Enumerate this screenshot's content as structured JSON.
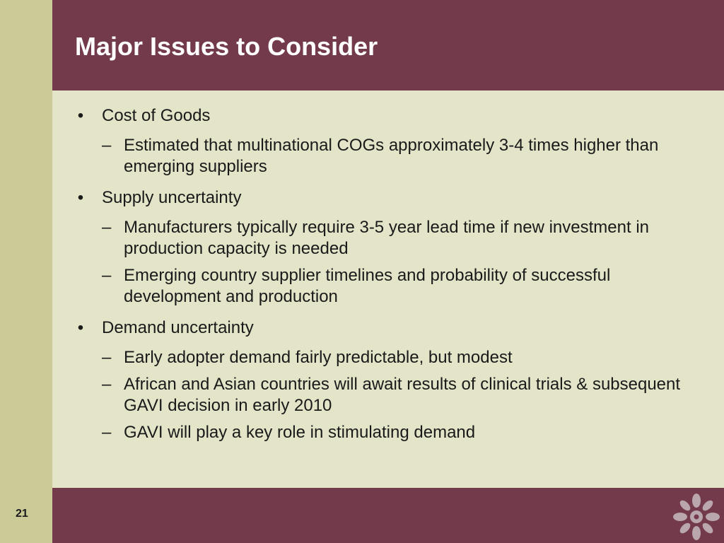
{
  "slide": {
    "title": "Major Issues to Consider",
    "page_number": "21",
    "colors": {
      "title_bar": "#733a4b",
      "footer_bar": "#733a4b",
      "left_strip": "#cbcb97",
      "content_bg": "#e3e4c8"
    },
    "logo_icon": "starburst-logo-icon",
    "bullets": [
      {
        "text": "Cost of Goods",
        "subs": [
          "Estimated that multinational COGs approximately 3-4 times higher than emerging suppliers"
        ]
      },
      {
        "text": "Supply uncertainty",
        "subs": [
          "Manufacturers typically require 3-5 year lead time if new investment in production capacity is needed",
          "Emerging country supplier timelines and probability of successful development and production"
        ]
      },
      {
        "text": "Demand uncertainty",
        "subs": [
          "Early adopter demand fairly predictable, but modest",
          "African and Asian countries will await results of clinical trials & subsequent GAVI decision in early 2010",
          "GAVI will play a key role in stimulating demand"
        ]
      }
    ]
  }
}
